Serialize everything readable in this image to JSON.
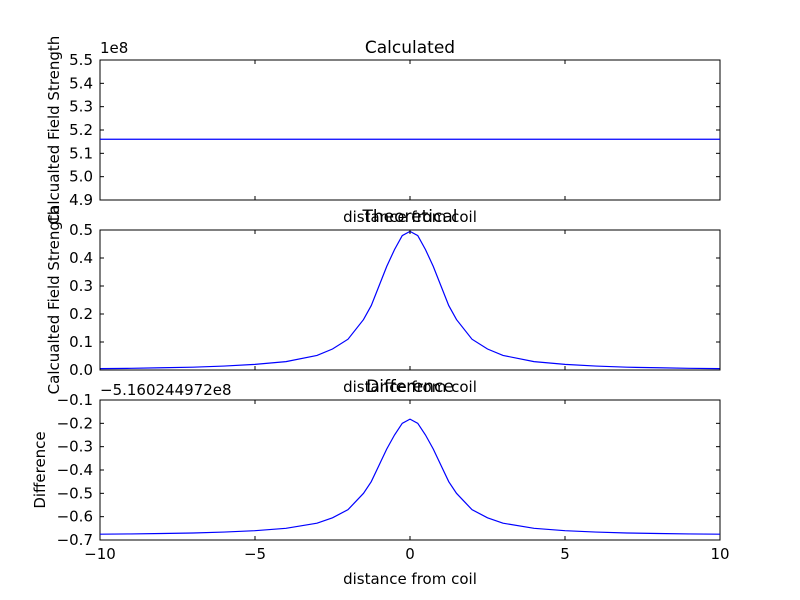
{
  "chart_data": [
    {
      "type": "line",
      "title": "Calculated",
      "xlabel": "distance from coil",
      "ylabel": "Calcualted Field Strength",
      "offset_text": "1e8",
      "xlim": [
        -10,
        10
      ],
      "ylim": [
        4.9,
        5.5
      ],
      "yticks": [
        "4.9",
        "5.0",
        "5.1",
        "5.2",
        "5.3",
        "5.4",
        "5.5"
      ],
      "ytick_values": [
        4.9,
        5.0,
        5.1,
        5.2,
        5.3,
        5.4,
        5.5
      ],
      "series": [
        {
          "x": [
            -10,
            10
          ],
          "y": [
            5.160244972,
            5.160244972
          ]
        }
      ]
    },
    {
      "type": "line",
      "title": "Theoretical",
      "xlabel": "distance from coil",
      "ylabel": "Calcualted Field Strength",
      "xlim": [
        -10,
        10
      ],
      "ylim": [
        0.0,
        0.5
      ],
      "yticks": [
        "0.0",
        "0.1",
        "0.2",
        "0.3",
        "0.4",
        "0.5"
      ],
      "ytick_values": [
        0.0,
        0.1,
        0.2,
        0.3,
        0.4,
        0.5
      ],
      "series": [
        {
          "x": [
            -10,
            -9,
            -8,
            -7,
            -6,
            -5,
            -4,
            -3,
            -2.5,
            -2,
            -1.5,
            -1.25,
            -1,
            -0.75,
            -0.5,
            -0.25,
            0,
            0.25,
            0.5,
            0.75,
            1,
            1.25,
            1.5,
            2,
            2.5,
            3,
            4,
            5,
            6,
            7,
            8,
            9,
            10
          ],
          "y": [
            0.005,
            0.006,
            0.008,
            0.01,
            0.014,
            0.02,
            0.03,
            0.052,
            0.075,
            0.11,
            0.18,
            0.23,
            0.3,
            0.37,
            0.43,
            0.48,
            0.495,
            0.48,
            0.43,
            0.37,
            0.3,
            0.23,
            0.18,
            0.11,
            0.075,
            0.052,
            0.03,
            0.02,
            0.014,
            0.01,
            0.008,
            0.006,
            0.005
          ]
        }
      ]
    },
    {
      "type": "line",
      "title": "Difference",
      "xlabel": "distance from coil",
      "ylabel": "Difference",
      "offset_text": "−5.160244972e8",
      "xlim": [
        -10,
        10
      ],
      "ylim": [
        -0.7,
        -0.1
      ],
      "xticks": [
        "−10",
        "−5",
        "0",
        "5",
        "10"
      ],
      "xtick_values": [
        -10,
        -5,
        0,
        5,
        10
      ],
      "yticks": [
        "−0.7",
        "−0.6",
        "−0.5",
        "−0.4",
        "−0.3",
        "−0.2",
        "−0.1"
      ],
      "ytick_values": [
        -0.7,
        -0.6,
        -0.5,
        -0.4,
        -0.3,
        -0.2,
        -0.1
      ],
      "series": [
        {
          "x": [
            -10,
            -9,
            -8,
            -7,
            -6,
            -5,
            -4,
            -3,
            -2.5,
            -2,
            -1.5,
            -1.25,
            -1,
            -0.75,
            -0.5,
            -0.25,
            0,
            0.25,
            0.5,
            0.75,
            1,
            1.25,
            1.5,
            2,
            2.5,
            3,
            4,
            5,
            6,
            7,
            8,
            9,
            10
          ],
          "y": [
            -0.675,
            -0.674,
            -0.672,
            -0.67,
            -0.666,
            -0.66,
            -0.65,
            -0.628,
            -0.605,
            -0.57,
            -0.5,
            -0.45,
            -0.38,
            -0.31,
            -0.25,
            -0.2,
            -0.182,
            -0.2,
            -0.25,
            -0.31,
            -0.38,
            -0.45,
            -0.5,
            -0.57,
            -0.605,
            -0.628,
            -0.65,
            -0.66,
            -0.666,
            -0.67,
            -0.672,
            -0.674,
            -0.675
          ]
        }
      ]
    }
  ]
}
